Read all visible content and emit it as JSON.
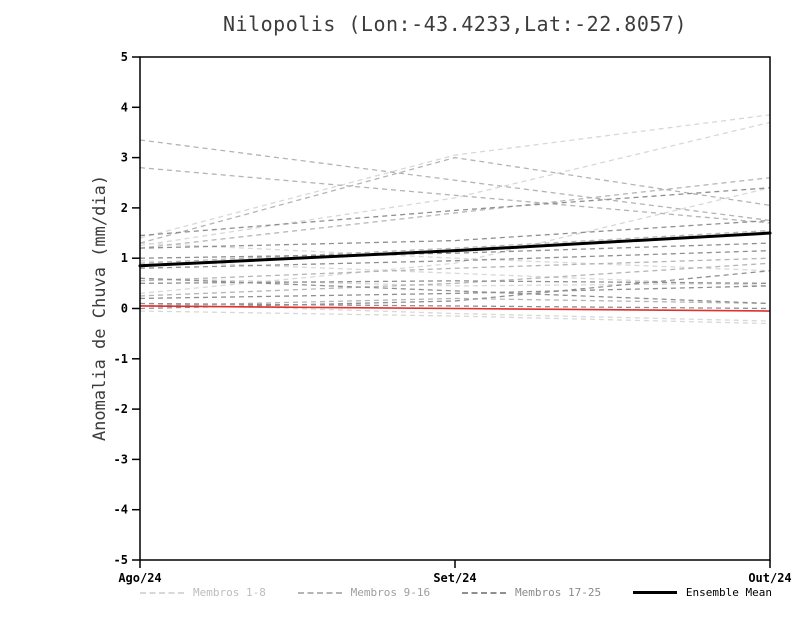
{
  "chart_data": {
    "type": "line",
    "title": "Nilopolis (Lon:-43.4233,Lat:-22.8057)",
    "ylabel": "Anomalia de Chuva (mm/dia)",
    "xlabel": "",
    "categories": [
      "Ago/24",
      "Set/24",
      "Out/24"
    ],
    "ylim": [
      -5,
      5
    ],
    "yticks": [
      -5,
      -4,
      -3,
      -2,
      -1,
      0,
      1,
      2,
      3,
      4,
      5
    ],
    "grid": false,
    "legend_position": "bottom",
    "groups": [
      {
        "name": "Membros 1-8",
        "color": "#d8d8d8",
        "style": "dashed",
        "series": [
          [
            1.4,
            3.05,
            3.85
          ],
          [
            1.25,
            2.2,
            3.7
          ],
          [
            0.3,
            0.9,
            2.4
          ],
          [
            1.3,
            1.0,
            0.75
          ],
          [
            0.6,
            0.45,
            0.5
          ],
          [
            0.1,
            -0.1,
            -0.25
          ],
          [
            -0.05,
            -0.15,
            -0.3
          ],
          [
            0.95,
            0.7,
            0.45
          ]
        ]
      },
      {
        "name": "Membros 9-16",
        "color": "#b4b4b4",
        "style": "dashed",
        "series": [
          [
            3.35,
            2.55,
            1.75
          ],
          [
            2.8,
            2.25,
            1.7
          ],
          [
            1.3,
            3.0,
            2.05
          ],
          [
            1.2,
            1.9,
            2.6
          ],
          [
            0.9,
            1.2,
            1.55
          ],
          [
            0.55,
            0.8,
            1.0
          ],
          [
            0.25,
            0.5,
            0.9
          ],
          [
            0.05,
            0.2,
            0.1
          ]
        ]
      },
      {
        "name": "Membros 17-25",
        "color": "#8f8f8f",
        "style": "dashed",
        "series": [
          [
            1.45,
            1.95,
            2.4
          ],
          [
            1.2,
            1.35,
            1.75
          ],
          [
            1.0,
            1.1,
            1.3
          ],
          [
            0.8,
            0.95,
            1.15
          ],
          [
            0.5,
            0.55,
            0.5
          ],
          [
            0.2,
            0.3,
            0.45
          ],
          [
            0.1,
            0.05,
            0.0
          ],
          [
            0.0,
            0.15,
            0.75
          ],
          [
            0.6,
            0.35,
            0.1
          ]
        ]
      }
    ],
    "mean": {
      "name": "Ensemble Mean",
      "color": "#000000",
      "style": "solid",
      "values": [
        0.85,
        1.15,
        1.5
      ]
    },
    "reference": {
      "name": "reference-line",
      "color": "#e03030",
      "style": "solid",
      "values": [
        0.05,
        0.0,
        -0.05
      ]
    },
    "legend": [
      {
        "label": "Membros 1-8",
        "color": "#d8d8d8",
        "label_color": "#bdbdbd",
        "style": "dashed"
      },
      {
        "label": "Membros 9-16",
        "color": "#b4b4b4",
        "label_color": "#9e9e9e",
        "style": "dashed"
      },
      {
        "label": "Membros 17-25",
        "color": "#8f8f8f",
        "label_color": "#8a8a8a",
        "style": "dashed"
      },
      {
        "label": "Ensemble Mean",
        "color": "#000000",
        "label_color": "#000000",
        "style": "solid"
      }
    ]
  }
}
